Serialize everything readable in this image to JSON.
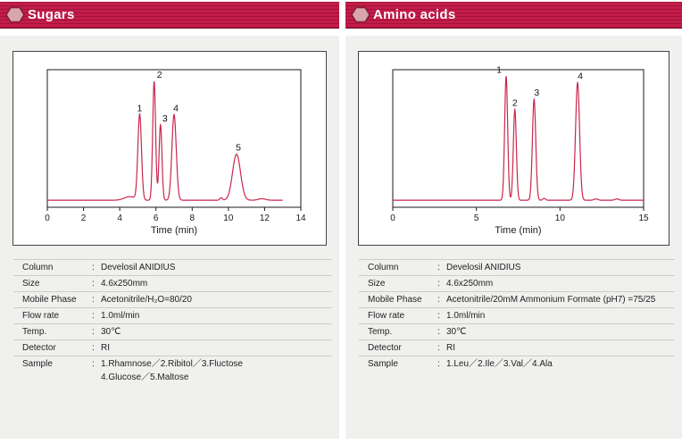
{
  "ui": {
    "colon": ":"
  },
  "colors": {
    "accent": "#c41c4a",
    "accent_stripe": "#a01338",
    "accent_dark": "#7e0d30",
    "hexagon_fill": "#d9a6ab",
    "hexagon_stroke": "#7d1f33",
    "panel_bg": "#f0f0ee",
    "curve": "#c9274d",
    "separator": "#cccccc"
  },
  "panels": [
    {
      "header": {
        "title": "Sugars"
      },
      "details": {
        "rows": [
          {
            "label": "Column",
            "value": "Develosil ANIDIUS"
          },
          {
            "label": "Size",
            "value": "4.6x250mm"
          },
          {
            "label": "Mobile Phase",
            "value": "Acetonitrile/H₂O=80/20"
          },
          {
            "label": "Flow rate",
            "value": "1.0ml/min"
          },
          {
            "label": "Temp.",
            "value": "30℃"
          },
          {
            "label": "Detector",
            "value": "RI"
          },
          {
            "label": "Sample",
            "value": "1.Rhamnose／2.Ribitol／3.Fluctose"
          }
        ],
        "sample_line2": "4.Glucose／5.Maltose"
      }
    },
    {
      "header": {
        "title": "Amino acids"
      },
      "details": {
        "rows": [
          {
            "label": "Column",
            "value": "Develosil ANIDIUS"
          },
          {
            "label": "Size",
            "value": "4.6x250mm"
          },
          {
            "label": "Mobile Phase",
            "value": "Acetonitrile/20mM Ammonium Formate (pH7) =75/25"
          },
          {
            "label": "Flow rate",
            "value": "1.0ml/min"
          },
          {
            "label": "Temp.",
            "value": "30℃"
          },
          {
            "label": "Detector",
            "value": "RI"
          },
          {
            "label": "Sample",
            "value": "1.Leu／2.Ile／3.Val／4.Ala"
          }
        ],
        "sample_line2": ""
      }
    }
  ],
  "chart_data": [
    {
      "type": "line",
      "title": "Sugars chromatogram (RI detection)",
      "xlabel": "Time (min)",
      "ylabel": "",
      "xlim": [
        0,
        14
      ],
      "xticks": [
        0,
        2,
        4,
        6,
        8,
        10,
        12,
        14
      ],
      "grid": false,
      "legend": false,
      "line_color": "#c9274d",
      "baseline_level": 0.02,
      "trace_end": 13.0,
      "peaks": [
        {
          "label": "1",
          "time_min": 5.1,
          "rel_height": 0.67,
          "sigma_min": 0.1,
          "label_dx": 0
        },
        {
          "label": "2",
          "time_min": 5.9,
          "rel_height": 0.93,
          "sigma_min": 0.08,
          "label_dx": 6
        },
        {
          "label": "3",
          "time_min": 6.25,
          "rel_height": 0.59,
          "sigma_min": 0.08,
          "label_dx": 5
        },
        {
          "label": "4",
          "time_min": 7.0,
          "rel_height": 0.67,
          "sigma_min": 0.12,
          "label_dx": 2
        },
        {
          "label": "5",
          "time_min": 10.45,
          "rel_height": 0.36,
          "sigma_min": 0.22,
          "label_dx": 2
        }
      ],
      "baseline_bumps": [
        {
          "time_min": 4.55,
          "rel_height": 0.028,
          "sigma_min": 0.3
        },
        {
          "time_min": 9.6,
          "rel_height": 0.02,
          "sigma_min": 0.07
        },
        {
          "time_min": 11.85,
          "rel_height": 0.012,
          "sigma_min": 0.2
        }
      ]
    },
    {
      "type": "line",
      "title": "Amino acids chromatogram (RI detection)",
      "xlabel": "Time (min)",
      "ylabel": "",
      "xlim": [
        0,
        15
      ],
      "xticks": [
        0,
        5,
        10,
        15
      ],
      "grid": false,
      "legend": false,
      "line_color": "#c9274d",
      "baseline_level": 0.02,
      "trace_end": 15.0,
      "peaks": [
        {
          "label": "1",
          "time_min": 6.78,
          "rel_height": 0.97,
          "sigma_min": 0.09,
          "label_dx": -8
        },
        {
          "label": "2",
          "time_min": 7.3,
          "rel_height": 0.71,
          "sigma_min": 0.09,
          "label_dx": 0
        },
        {
          "label": "3",
          "time_min": 8.45,
          "rel_height": 0.79,
          "sigma_min": 0.1,
          "label_dx": 3
        },
        {
          "label": "4",
          "time_min": 11.05,
          "rel_height": 0.92,
          "sigma_min": 0.12,
          "label_dx": 3
        }
      ],
      "baseline_bumps": [
        {
          "time_min": 9.05,
          "rel_height": 0.015,
          "sigma_min": 0.08
        },
        {
          "time_min": 12.15,
          "rel_height": 0.01,
          "sigma_min": 0.12
        },
        {
          "time_min": 13.4,
          "rel_height": 0.01,
          "sigma_min": 0.12
        }
      ]
    }
  ]
}
